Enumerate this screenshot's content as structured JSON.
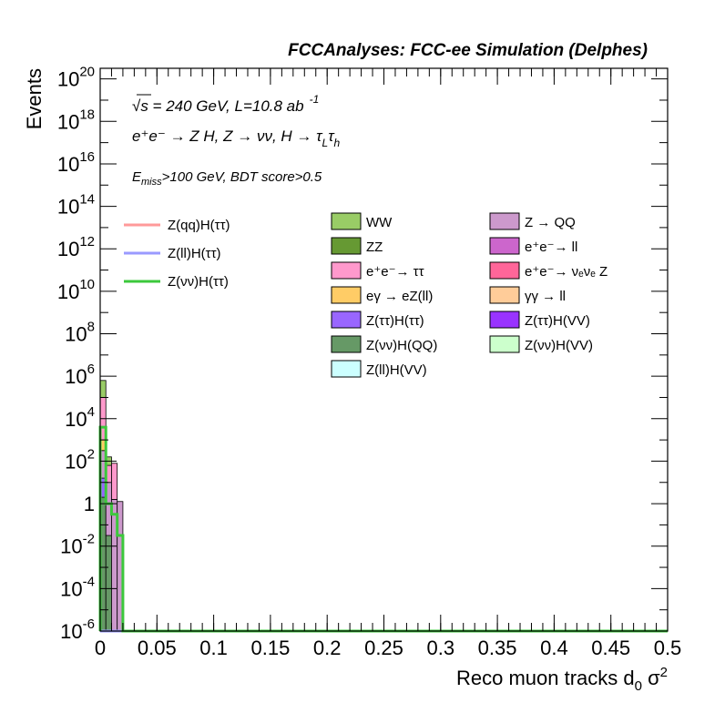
{
  "chart_data": {
    "type": "bar",
    "title": "FCCAnalyses: FCC-ee Simulation (Delphes)",
    "xlabel": "Reco muon tracks d",
    "xlabel_sub": "0",
    "xlabel_tail": " σ",
    "xlabel_sup": "2",
    "ylabel": "Events",
    "xlim": [
      0,
      0.5
    ],
    "ylim_log10": [
      -6,
      20.5
    ],
    "y_scale": "log",
    "x_ticks": [
      {
        "v": 0,
        "label": "0"
      },
      {
        "v": 0.05,
        "label": "0.05"
      },
      {
        "v": 0.1,
        "label": "0.1"
      },
      {
        "v": 0.15,
        "label": "0.15"
      },
      {
        "v": 0.2,
        "label": "0.2"
      },
      {
        "v": 0.25,
        "label": "0.25"
      },
      {
        "v": 0.3,
        "label": "0.3"
      },
      {
        "v": 0.35,
        "label": "0.35"
      },
      {
        "v": 0.4,
        "label": "0.4"
      },
      {
        "v": 0.45,
        "label": "0.45"
      },
      {
        "v": 0.5,
        "label": "0.5"
      }
    ],
    "y_ticks": [
      {
        "exp": 20,
        "base": "10",
        "sup": "20"
      },
      {
        "exp": 18,
        "base": "10",
        "sup": "18"
      },
      {
        "exp": 16,
        "base": "10",
        "sup": "16"
      },
      {
        "exp": 14,
        "base": "10",
        "sup": "14"
      },
      {
        "exp": 12,
        "base": "10",
        "sup": "12"
      },
      {
        "exp": 10,
        "base": "10",
        "sup": "10"
      },
      {
        "exp": 8,
        "base": "10",
        "sup": "8"
      },
      {
        "exp": 6,
        "base": "10",
        "sup": "6"
      },
      {
        "exp": 4,
        "base": "10",
        "sup": "4"
      },
      {
        "exp": 2,
        "base": "10",
        "sup": "2"
      },
      {
        "exp": 0,
        "base": "1",
        "sup": ""
      },
      {
        "exp": -2,
        "base": "10",
        "sup": "-2"
      },
      {
        "exp": -4,
        "base": "10",
        "sup": "-4"
      },
      {
        "exp": -6,
        "base": "10",
        "sup": "-6"
      }
    ],
    "annotations": {
      "sqrt_s": "√s = 240 GeV, L=10.8 ab",
      "lumi_unit_sup": "-1",
      "process": "e⁺e⁻ → Z H, Z → νν, H → τ",
      "process_sub1": "L",
      "process_mid": "τ",
      "process_sub2": "h",
      "cut_prefix": "E",
      "cut_sub": "miss",
      "cut_text": ">100 GeV, BDT score>0.5"
    },
    "bin_edges": [
      0,
      0.005,
      0.01,
      0.015,
      0.02
    ],
    "stack_bins": [
      {
        "bin": 0,
        "segments": [
          {
            "bkg": "Z(νν)H(QQ)",
            "from": -6,
            "to": 0.3
          },
          {
            "bkg": "Z(ττ)H(ττ)",
            "from": 0.3,
            "to": 1.2
          },
          {
            "bkg": "Z → QQ",
            "from": 1.2,
            "to": 2.5
          },
          {
            "bkg": "eγ → eZ(ll)",
            "from": 2.5,
            "to": 3.0
          },
          {
            "bkg": "e⁺e⁻→ ττ",
            "from": 3.0,
            "to": 5.0
          },
          {
            "bkg": "WW",
            "from": 5.0,
            "to": 5.8
          }
        ]
      },
      {
        "bin": 1,
        "segments": [
          {
            "bkg": "Z(νν)H(QQ)",
            "from": -6,
            "to": -1.5
          },
          {
            "bkg": "Z → QQ",
            "from": -1.5,
            "to": 1.0
          },
          {
            "bkg": "e⁺e⁻→ ττ",
            "from": 1.0,
            "to": 1.8
          },
          {
            "bkg": "WW",
            "from": 1.8,
            "to": 2.2
          }
        ]
      },
      {
        "bin": 2,
        "segments": [
          {
            "bkg": "Z → QQ",
            "from": -6,
            "to": 0.2
          },
          {
            "bkg": "e⁺e⁻→ ττ",
            "from": 0.2,
            "to": 1.9
          }
        ]
      },
      {
        "bin": 3,
        "segments": [
          {
            "bkg": "Z → QQ",
            "from": -6,
            "to": 0.1
          }
        ]
      }
    ],
    "signal_lines": [
      {
        "name": "Z(qq)H(ττ)",
        "color": "#ff9a9a",
        "log10_values": [
          -6,
          -6,
          -6,
          -6
        ]
      },
      {
        "name": "Z(ll)H(ττ)",
        "color": "#9a9aff",
        "log10_values": [
          -6,
          -6,
          -6,
          -6
        ]
      },
      {
        "name": "Z(νν)H(ττ)",
        "color": "#3cc83c",
        "log10_values": [
          3.6,
          0,
          -0.5,
          -1.5
        ]
      }
    ],
    "legend_signals": [
      {
        "name": "Z(qq)H(ττ)",
        "color": "#ff9a9a"
      },
      {
        "name": "Z(ll)H(ττ)",
        "color": "#9a9aff"
      },
      {
        "name": "Z(νν)H(ττ)",
        "color": "#3cc83c"
      }
    ],
    "legend_backgrounds": [
      {
        "name": "WW",
        "color": "#99cc66"
      },
      {
        "name": "Z → QQ",
        "color": "#cc99cc"
      },
      {
        "name": "ZZ",
        "color": "#669933"
      },
      {
        "name": "e⁺e⁻→ ll",
        "color": "#cc66cc"
      },
      {
        "name": "e⁺e⁻→ ττ",
        "color": "#ff99cc"
      },
      {
        "name": "e⁺e⁻→ νₑνₑ Z",
        "color": "#ff6699"
      },
      {
        "name": "eγ → eZ(ll)",
        "color": "#ffcc66"
      },
      {
        "name": "γγ → ll",
        "color": "#ffcc99"
      },
      {
        "name": "Z(ττ)H(ττ)",
        "color": "#9966ff"
      },
      {
        "name": "Z(ττ)H(VV)",
        "color": "#9933ff"
      },
      {
        "name": "Z(νν)H(QQ)",
        "color": "#669966"
      },
      {
        "name": "Z(νν)H(VV)",
        "color": "#ccffcc"
      },
      {
        "name": "Z(ll)H(VV)",
        "color": "#ccffff"
      }
    ]
  }
}
